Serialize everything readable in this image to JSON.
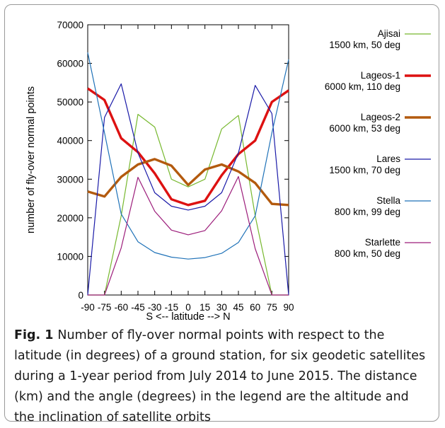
{
  "chart_data": {
    "type": "line",
    "xlabel": "S <-- latitude --> N",
    "ylabel": "number of fly-over normal points",
    "x": [
      -90,
      -75,
      -60,
      -45,
      -30,
      -15,
      0,
      15,
      30,
      45,
      60,
      75,
      90
    ],
    "xticks": [
      "-90",
      "-75",
      "-60",
      "-45",
      "-30",
      "-15",
      "0",
      "15",
      "30",
      "45",
      "60",
      "75",
      "90"
    ],
    "yticks": [
      "0",
      "10000",
      "20000",
      "30000",
      "40000",
      "50000",
      "60000",
      "70000"
    ],
    "xlim": [
      -90,
      90
    ],
    "ylim": [
      0,
      70000
    ],
    "grid": false,
    "legend_position": "right",
    "series": [
      {
        "name": "Ajisai",
        "detail": "1500 km, 50 deg",
        "color": "#77b82e",
        "width": 1.2,
        "values": [
          0,
          0,
          20500,
          46800,
          43500,
          30000,
          28000,
          30000,
          43000,
          46500,
          20500,
          0,
          0
        ]
      },
      {
        "name": "Lageos-1",
        "detail": "6000 km, 110 deg",
        "color": "#dd1111",
        "width": 3.4,
        "values": [
          53500,
          50500,
          40600,
          37000,
          31500,
          24800,
          23300,
          24400,
          31000,
          36500,
          40000,
          50000,
          53000
        ]
      },
      {
        "name": "Lageos-2",
        "detail": "6000 km, 53 deg",
        "color": "#b35a0e",
        "width": 3.4,
        "values": [
          26800,
          25500,
          30600,
          33800,
          35200,
          33500,
          28500,
          32500,
          33800,
          32000,
          29000,
          23600,
          23300
        ]
      },
      {
        "name": "Lares",
        "detail": "1500 km, 70 deg",
        "color": "#1a1aa8",
        "width": 1.2,
        "values": [
          0,
          46000,
          54700,
          36800,
          26500,
          23000,
          22000,
          23000,
          26500,
          36800,
          54300,
          47000,
          0
        ]
      },
      {
        "name": "Stella",
        "detail": "800 km, 99 deg",
        "color": "#1f72b8",
        "width": 1.2,
        "values": [
          62800,
          42000,
          21000,
          13800,
          11000,
          9800,
          9300,
          9700,
          10800,
          13600,
          20500,
          42000,
          61000
        ]
      },
      {
        "name": "Starlette",
        "detail": "800 km, 50 deg",
        "color": "#9c1c7a",
        "width": 1.2,
        "values": [
          0,
          0,
          12200,
          30500,
          21700,
          16800,
          15600,
          16700,
          21800,
          30700,
          12000,
          0,
          0
        ]
      }
    ]
  },
  "caption": {
    "label": "Fig. 1",
    "text": "Number of fly-over normal points with respect to the latitude (in degrees) of a ground station, for six geodetic satellites during a 1-year period from July 2014 to June 2015. The distance (km) and the angle (degrees) in the legend are the altitude and the inclination of satellite orbits"
  }
}
